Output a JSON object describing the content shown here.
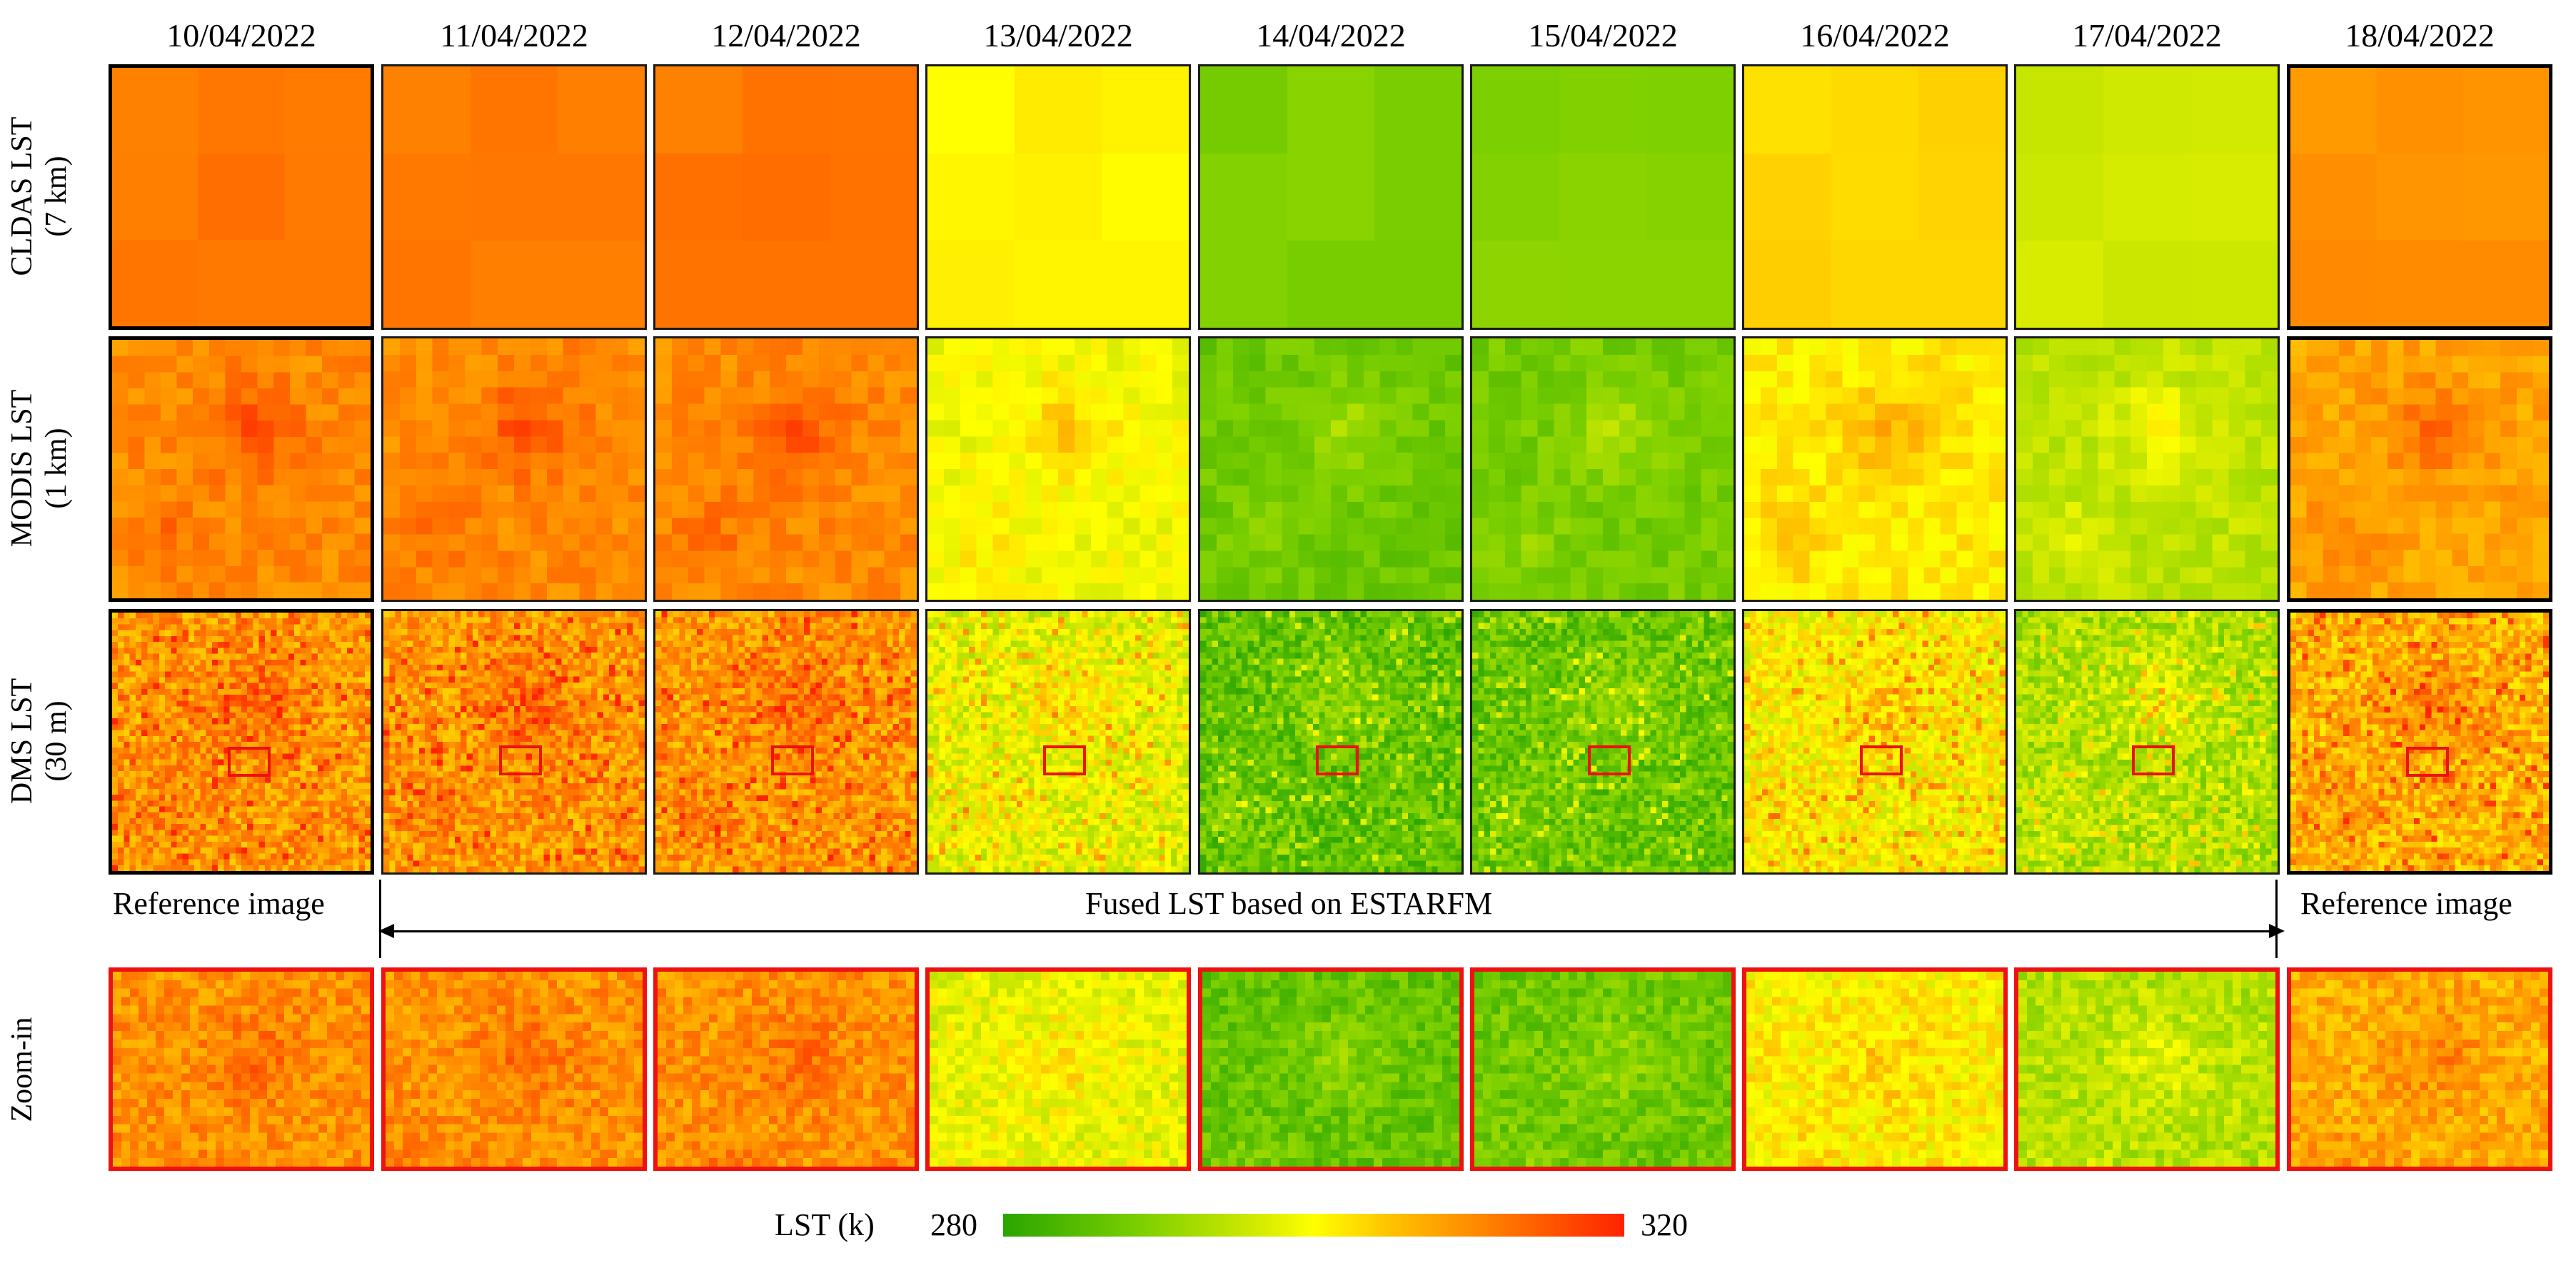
{
  "dates": [
    "10/04/2022",
    "11/04/2022",
    "12/04/2022",
    "13/04/2022",
    "14/04/2022",
    "15/04/2022",
    "16/04/2022",
    "17/04/2022",
    "18/04/2022"
  ],
  "rows": {
    "cldas": {
      "line1": "CLDAS LST",
      "line2": "(7 km)"
    },
    "modis": {
      "line1": "MODIS LST",
      "line2": "(1 km)"
    },
    "dms": {
      "line1": "DMS LST",
      "line2": "(30 m)"
    },
    "zoom": {
      "line1": "Zoom-in"
    }
  },
  "captions": {
    "reference_left": "Reference image",
    "fused": "Fused LST based on ESTARFM",
    "reference_right": "Reference image"
  },
  "legend": {
    "title": "LST (k)",
    "min": "280",
    "max": "320",
    "colors": [
      "#2aa500",
      "#7ccf00",
      "#ffff00",
      "#ff8a00",
      "#ff2200"
    ]
  },
  "day_tones": [
    0.8,
    0.8,
    0.8,
    0.52,
    0.22,
    0.24,
    0.58,
    0.4,
    0.74
  ],
  "reference_days": [
    0,
    8
  ]
}
